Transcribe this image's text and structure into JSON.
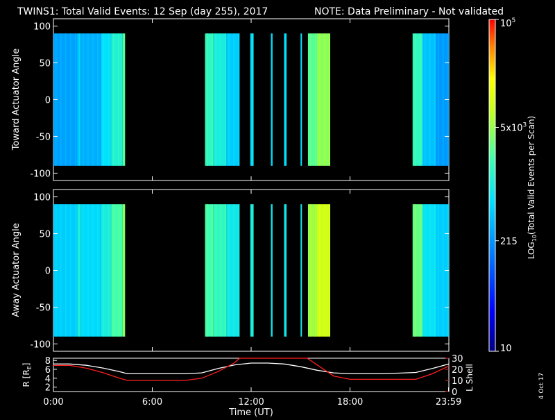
{
  "header": {
    "title": "TWINS1: Total Valid Events: 12 Sep (day 255), 2017",
    "note": "NOTE: Data Preliminary - Not validated",
    "note_color": "#ff2020"
  },
  "colorbar": {
    "label": "LOG10(Total Valid Events per Scan)",
    "label_prefix": "LOG",
    "label_sub": "10",
    "label_suffix": "(Total Valid Events per Scan)",
    "ticks": [
      {
        "value": 10,
        "text": "10",
        "base": "",
        "exp": ""
      },
      {
        "value": 215,
        "text": "215",
        "base": "",
        "exp": ""
      },
      {
        "value": 5000,
        "text": "",
        "base": "5x10",
        "exp": "3"
      },
      {
        "value": 100000,
        "text": "",
        "base": "10",
        "exp": "5"
      }
    ],
    "log_range": [
      1,
      5
    ]
  },
  "footer": {
    "date_stamp": "4 Oct 17"
  },
  "chart_data": [
    {
      "type": "heatmap",
      "ylabel": "Toward Actuator Angle",
      "xlim_hours": [
        0,
        24
      ],
      "ylim": [
        -110,
        110
      ],
      "yticks": [
        "100",
        "50",
        "0",
        "-50",
        "-100"
      ],
      "ytick_values": [
        100,
        50,
        0,
        -50,
        -100
      ],
      "data_y_range": [
        -90,
        90
      ],
      "blocks": [
        {
          "start": 0.0,
          "end": 1.45,
          "level": 0.35
        },
        {
          "start": 1.45,
          "end": 1.65,
          "level": 0.42
        },
        {
          "start": 1.65,
          "end": 2.9,
          "level": 0.37
        },
        {
          "start": 2.9,
          "end": 3.5,
          "level": 0.45
        },
        {
          "start": 3.5,
          "end": 4.2,
          "level": 0.52
        },
        {
          "start": 4.2,
          "end": 4.35,
          "level": 0.6
        },
        {
          "start": 9.2,
          "end": 9.7,
          "level": 0.55
        },
        {
          "start": 9.7,
          "end": 10.5,
          "level": 0.5
        },
        {
          "start": 10.5,
          "end": 11.3,
          "level": 0.42
        },
        {
          "start": 11.95,
          "end": 12.15,
          "level": 0.45
        },
        {
          "start": 13.2,
          "end": 13.3,
          "level": 0.45
        },
        {
          "start": 14.0,
          "end": 14.15,
          "level": 0.45
        },
        {
          "start": 15.0,
          "end": 15.08,
          "level": 0.45
        },
        {
          "start": 15.45,
          "end": 16.0,
          "level": 0.6
        },
        {
          "start": 16.0,
          "end": 16.8,
          "level": 0.66
        },
        {
          "start": 21.8,
          "end": 22.4,
          "level": 0.55
        },
        {
          "start": 22.4,
          "end": 23.2,
          "level": 0.4
        },
        {
          "start": 23.2,
          "end": 24.0,
          "level": 0.34
        }
      ]
    },
    {
      "type": "heatmap",
      "ylabel": "Away Actuator Angle",
      "xlim_hours": [
        0,
        24
      ],
      "ylim": [
        -110,
        110
      ],
      "yticks": [
        "100",
        "50",
        "0",
        "-50",
        "-100"
      ],
      "ytick_values": [
        100,
        50,
        0,
        -50,
        -100
      ],
      "data_y_range": [
        -90,
        90
      ],
      "blocks": [
        {
          "start": 0.0,
          "end": 1.45,
          "level": 0.42
        },
        {
          "start": 1.45,
          "end": 1.65,
          "level": 0.5
        },
        {
          "start": 1.65,
          "end": 2.9,
          "level": 0.44
        },
        {
          "start": 2.9,
          "end": 3.5,
          "level": 0.5
        },
        {
          "start": 3.5,
          "end": 4.2,
          "level": 0.58
        },
        {
          "start": 4.2,
          "end": 4.35,
          "level": 0.66
        },
        {
          "start": 9.2,
          "end": 9.7,
          "level": 0.58
        },
        {
          "start": 9.7,
          "end": 10.5,
          "level": 0.55
        },
        {
          "start": 10.5,
          "end": 11.3,
          "level": 0.48
        },
        {
          "start": 11.95,
          "end": 12.15,
          "level": 0.5
        },
        {
          "start": 13.2,
          "end": 13.3,
          "level": 0.48
        },
        {
          "start": 14.0,
          "end": 14.15,
          "level": 0.48
        },
        {
          "start": 15.0,
          "end": 15.08,
          "level": 0.48
        },
        {
          "start": 15.45,
          "end": 16.0,
          "level": 0.68
        },
        {
          "start": 16.0,
          "end": 16.8,
          "level": 0.74
        },
        {
          "start": 21.8,
          "end": 22.4,
          "level": 0.62
        },
        {
          "start": 22.4,
          "end": 23.2,
          "level": 0.46
        },
        {
          "start": 23.2,
          "end": 24.0,
          "level": 0.42
        }
      ]
    },
    {
      "type": "line",
      "ylabel_left": "R [RE]",
      "ylabel_left_main": "R [R",
      "ylabel_left_sub": "E",
      "ylabel_left_end": "]",
      "ylabel_right": "L Shell",
      "xlabel": "Time (UT)",
      "xticks": [
        "0:00",
        "6:00",
        "12:00",
        "18:00",
        "23:59"
      ],
      "xtick_values": [
        0,
        6,
        12,
        18,
        23.98
      ],
      "ylim_left": [
        1,
        8.5
      ],
      "yticks_left": [
        "8",
        "6",
        "4",
        "2"
      ],
      "ytick_left_values": [
        8,
        6,
        4,
        2
      ],
      "ylim_right": [
        0,
        30
      ],
      "yticks_right": [
        "30",
        "20",
        "10",
        "0"
      ],
      "ytick_right_values": [
        30,
        20,
        10,
        0
      ],
      "series": [
        {
          "color": "#ffffff",
          "axis": "left",
          "x": [
            0,
            1,
            2,
            3,
            4,
            4.5,
            6,
            8,
            9,
            10,
            11,
            12,
            13,
            14,
            15,
            16,
            17,
            18,
            20,
            22,
            23,
            24
          ],
          "y": [
            7.2,
            7.2,
            6.9,
            6.3,
            5.5,
            5.0,
            5.0,
            5.0,
            5.2,
            6.2,
            7.0,
            7.4,
            7.4,
            7.2,
            6.6,
            5.8,
            5.2,
            5.0,
            5.0,
            5.3,
            6.2,
            7.2
          ]
        },
        {
          "color": "#ff2020",
          "axis": "right",
          "x": [
            0,
            1,
            2,
            3,
            4,
            4.5,
            6,
            8,
            9,
            10,
            11,
            11.3,
            15.4,
            16,
            17,
            18,
            20,
            22,
            23,
            24
          ],
          "y": [
            23.5,
            23.5,
            21,
            17,
            12,
            10,
            10,
            10,
            12,
            18,
            26,
            30,
            30,
            24,
            14,
            11,
            11,
            11,
            16,
            23
          ]
        }
      ]
    }
  ]
}
